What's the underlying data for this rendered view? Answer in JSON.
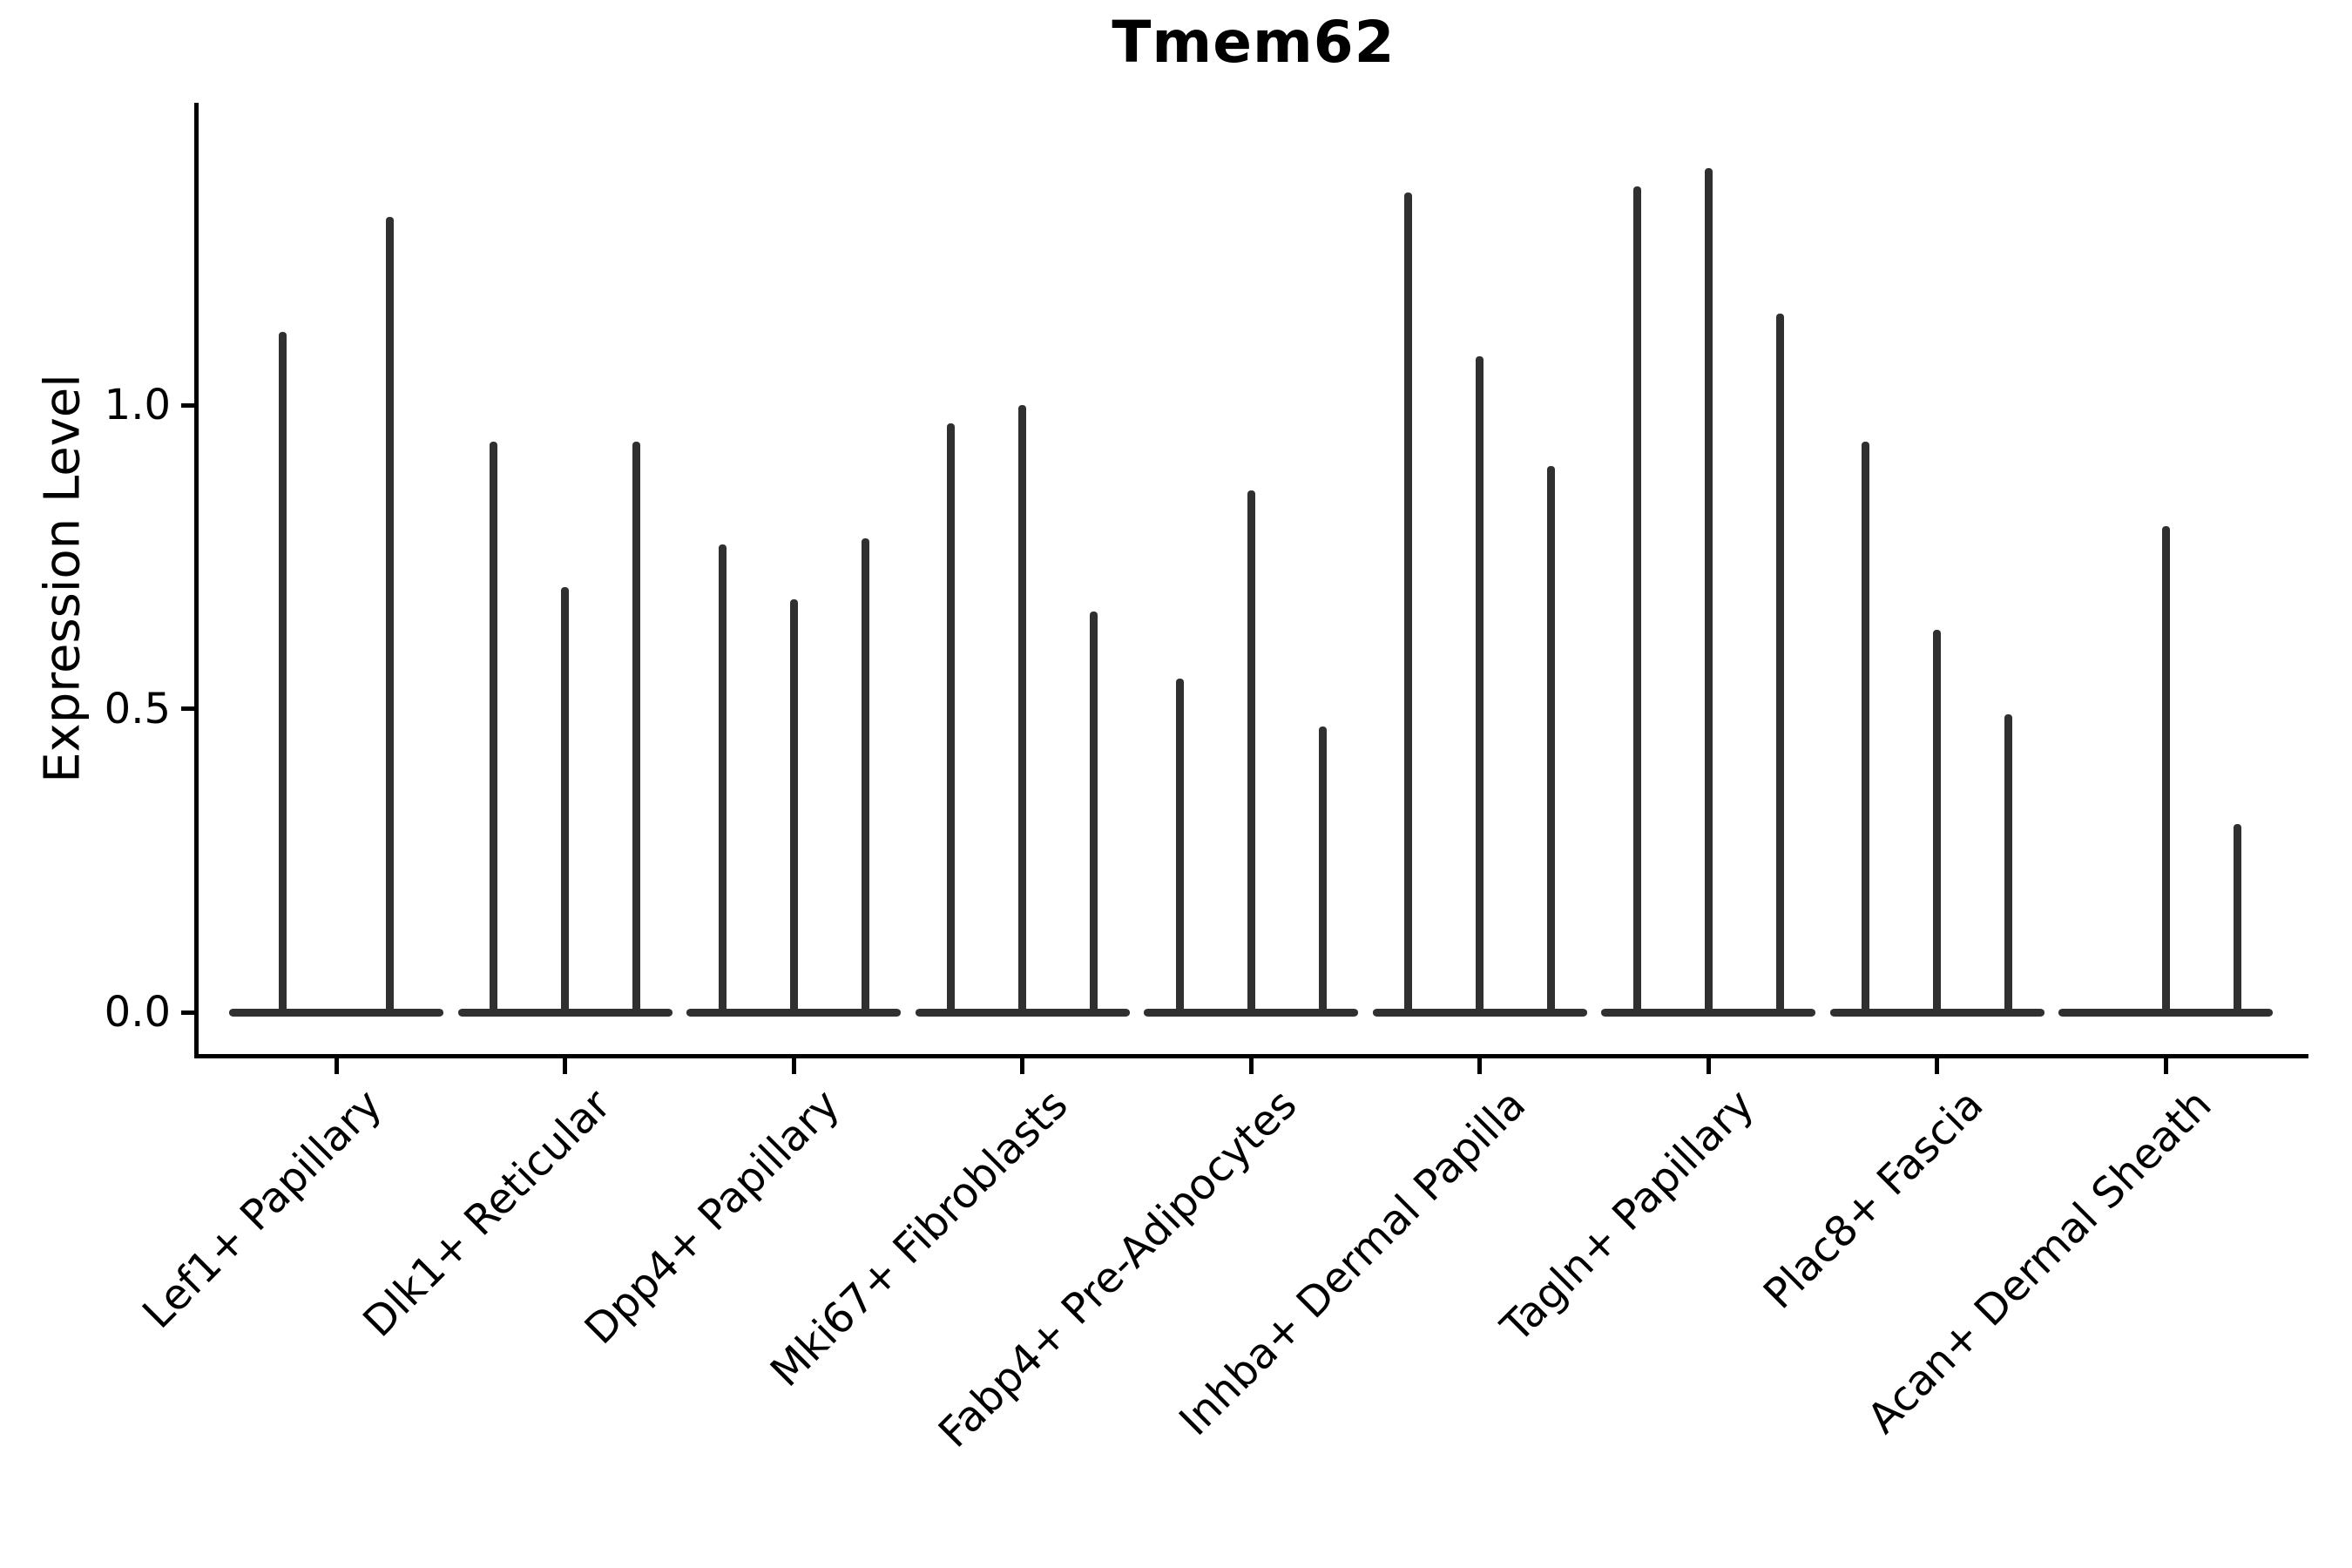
{
  "chart_data": {
    "type": "violin",
    "title": "Tmem62",
    "ylabel": "Expression Level",
    "xlabel": "",
    "ylim": [
      0,
      1.5
    ],
    "grid": false,
    "legend_position": "none",
    "colors": {
      "violin": "#303030",
      "axis": "#000000",
      "text": "#000000",
      "background": "#ffffff"
    },
    "yticks": [
      {
        "value": 0.0,
        "label": "0.0"
      },
      {
        "value": 0.5,
        "label": "0.5"
      },
      {
        "value": 1.0,
        "label": "1.0"
      }
    ],
    "groups": [
      {
        "label": "Lef1+ Papillary",
        "slots": 2,
        "violins": [
          {
            "slot": 0,
            "max": 1.12
          },
          {
            "slot": 1,
            "max": 1.31
          }
        ]
      },
      {
        "label": "Dlk1+ Reticular",
        "slots": 3,
        "violins": [
          {
            "slot": 0,
            "max": 0.94
          },
          {
            "slot": 1,
            "max": 0.7
          },
          {
            "slot": 2,
            "max": 0.94
          }
        ]
      },
      {
        "label": "Dpp4+ Papillary",
        "slots": 3,
        "violins": [
          {
            "slot": 0,
            "max": 0.77
          },
          {
            "slot": 1,
            "max": 0.68
          },
          {
            "slot": 2,
            "max": 0.78
          }
        ]
      },
      {
        "label": "Mki67+ Fibroblasts",
        "slots": 3,
        "violins": [
          {
            "slot": 0,
            "max": 0.97
          },
          {
            "slot": 1,
            "max": 1.0
          },
          {
            "slot": 2,
            "max": 0.66
          }
        ]
      },
      {
        "label": "Fabp4+ Pre-Adipocytes",
        "slots": 3,
        "violins": [
          {
            "slot": 0,
            "max": 0.55
          },
          {
            "slot": 1,
            "max": 0.86
          },
          {
            "slot": 2,
            "max": 0.47
          }
        ]
      },
      {
        "label": "Inhba+ Dermal Papilla",
        "slots": 3,
        "violins": [
          {
            "slot": 0,
            "max": 1.35
          },
          {
            "slot": 1,
            "max": 1.08
          },
          {
            "slot": 2,
            "max": 0.9
          }
        ]
      },
      {
        "label": "Tagln+ Papillary",
        "slots": 3,
        "violins": [
          {
            "slot": 0,
            "max": 1.36
          },
          {
            "slot": 1,
            "max": 1.39
          },
          {
            "slot": 2,
            "max": 1.15
          }
        ]
      },
      {
        "label": "Plac8+ Fascia",
        "slots": 3,
        "violins": [
          {
            "slot": 0,
            "max": 0.94
          },
          {
            "slot": 1,
            "max": 0.63
          },
          {
            "slot": 2,
            "max": 0.49
          }
        ]
      },
      {
        "label": "Acan+ Dermal Sheath",
        "slots": 3,
        "violins": [
          {
            "slot": 0,
            "max": null
          },
          {
            "slot": 1,
            "max": 0.8
          },
          {
            "slot": 2,
            "max": 0.31
          }
        ]
      }
    ]
  }
}
